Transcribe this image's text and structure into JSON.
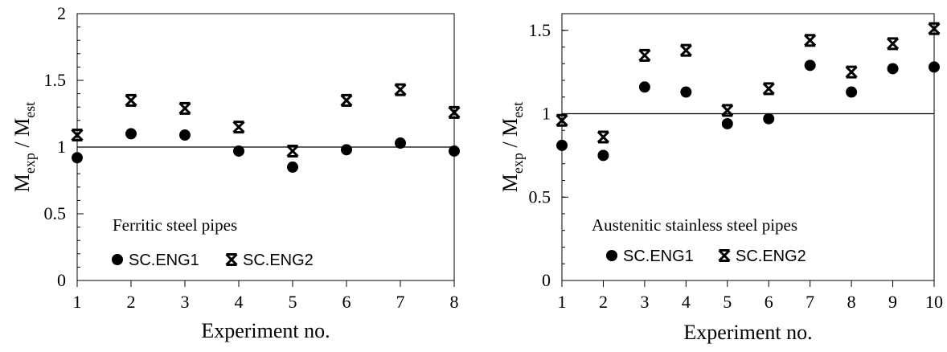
{
  "chart_data": [
    {
      "type": "scatter",
      "annotation": "Ferritic steel pipes",
      "xlabel": "Experiment no.",
      "ylabel": {
        "main": "M",
        "sub1": "exp",
        "sep": " / M",
        "sub2": "est"
      },
      "categories": [
        1,
        2,
        3,
        4,
        5,
        6,
        7,
        8
      ],
      "ylim": [
        0,
        2
      ],
      "yticks": [
        "0",
        "0.5",
        "1",
        "1.5",
        "2"
      ],
      "reference_line": 1,
      "legend_position": "bottom-left",
      "grid": false,
      "series": [
        {
          "name": "SC.ENG1",
          "marker": "circle",
          "values": [
            0.92,
            1.1,
            1.09,
            0.97,
            0.85,
            0.98,
            1.03,
            0.97
          ]
        },
        {
          "name": "SC.ENG2",
          "marker": "x-star",
          "values": [
            1.09,
            1.35,
            1.29,
            1.15,
            0.97,
            1.35,
            1.43,
            1.26
          ]
        }
      ]
    },
    {
      "type": "scatter",
      "annotation": "Austenitic stainless steel pipes",
      "xlabel": "Experiment no.",
      "ylabel": {
        "main": "M",
        "sub1": "exp",
        "sep": " / M",
        "sub2": "est"
      },
      "categories": [
        1,
        2,
        3,
        4,
        5,
        6,
        7,
        8,
        9,
        10
      ],
      "ylim": [
        0,
        1.6
      ],
      "yticks": [
        "0",
        "0.5",
        "1",
        "1.5"
      ],
      "reference_line": 1,
      "legend_position": "bottom-left",
      "grid": false,
      "series": [
        {
          "name": "SC.ENG1",
          "marker": "circle",
          "values": [
            0.81,
            0.75,
            1.16,
            1.13,
            0.94,
            0.97,
            1.29,
            1.13,
            1.27,
            1.28
          ]
        },
        {
          "name": "SC.ENG2",
          "marker": "x-star",
          "values": [
            0.96,
            0.86,
            1.35,
            1.38,
            1.02,
            1.15,
            1.44,
            1.25,
            1.42,
            1.51
          ]
        }
      ]
    }
  ]
}
